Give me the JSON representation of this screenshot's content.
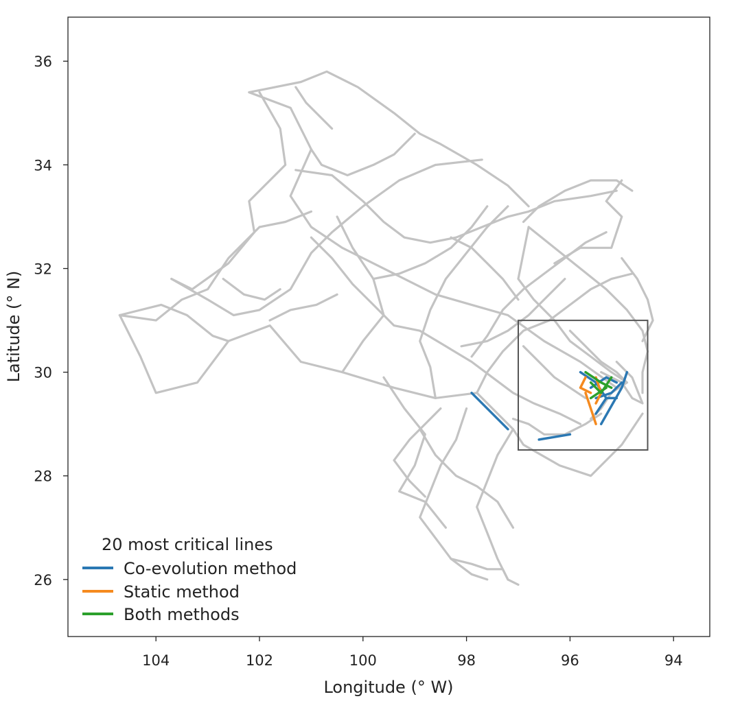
{
  "chart_data": {
    "type": "line",
    "xlabel": "Longitude (° W)",
    "ylabel": "Latitude (° N)",
    "xlim": [
      105.7,
      93.3
    ],
    "ylim": [
      24.9,
      36.85
    ],
    "x_ticks": [
      {
        "value": 104,
        "label": "104"
      },
      {
        "value": 102,
        "label": "102"
      },
      {
        "value": 100,
        "label": "100"
      },
      {
        "value": 98,
        "label": "98"
      },
      {
        "value": 96,
        "label": "96"
      },
      {
        "value": 94,
        "label": "94"
      }
    ],
    "y_ticks": [
      {
        "value": 36,
        "label": "36"
      },
      {
        "value": 34,
        "label": "34"
      },
      {
        "value": 32,
        "label": "32"
      },
      {
        "value": 30,
        "label": "30"
      },
      {
        "value": 28,
        "label": "28"
      },
      {
        "value": 26,
        "label": "26"
      }
    ],
    "inset_box": {
      "lon_min": 94.5,
      "lon_max": 97.0,
      "lat_min": 28.5,
      "lat_max": 31.0
    },
    "legend": {
      "title": "20 most critical lines",
      "placement": "bottom-left",
      "entries": [
        {
          "label": "Co-evolution method",
          "color": "#2b78b3"
        },
        {
          "label": "Static method",
          "color": "#f58a1f"
        },
        {
          "label": "Both methods",
          "color": "#2ca02c"
        }
      ]
    },
    "colors": {
      "network": "#c3c3c3",
      "co_evolution": "#2b78b3",
      "static": "#f58a1f",
      "both": "#2ca02c",
      "frame": "#222222",
      "inset_box": "#555555"
    },
    "background_network": [
      [
        [
          104.7,
          31.1
        ],
        [
          104.3,
          30.3
        ],
        [
          104.0,
          29.6
        ],
        [
          103.2,
          29.8
        ],
        [
          102.6,
          30.6
        ],
        [
          101.8,
          30.9
        ],
        [
          101.2,
          30.2
        ],
        [
          100.4,
          30.0
        ],
        [
          99.4,
          29.7
        ],
        [
          98.6,
          29.5
        ],
        [
          97.8,
          29.6
        ],
        [
          97.1,
          28.9
        ],
        [
          96.9,
          28.6
        ],
        [
          96.2,
          28.2
        ],
        [
          95.6,
          28.0
        ],
        [
          95.0,
          28.6
        ],
        [
          94.6,
          29.2
        ]
      ],
      [
        [
          104.7,
          31.1
        ],
        [
          104.0,
          31.0
        ],
        [
          103.5,
          31.4
        ],
        [
          103.0,
          31.6
        ],
        [
          102.6,
          32.2
        ],
        [
          102.0,
          32.8
        ],
        [
          101.5,
          32.9
        ],
        [
          101.0,
          33.1
        ]
      ],
      [
        [
          103.7,
          31.8
        ],
        [
          103.0,
          31.4
        ],
        [
          102.5,
          31.1
        ],
        [
          102.0,
          31.2
        ],
        [
          101.4,
          31.6
        ],
        [
          101.0,
          32.3
        ],
        [
          100.6,
          32.7
        ],
        [
          100.0,
          33.2
        ],
        [
          99.3,
          33.7
        ],
        [
          98.6,
          34.0
        ],
        [
          97.7,
          34.1
        ]
      ],
      [
        [
          102.2,
          35.4
        ],
        [
          101.4,
          35.1
        ],
        [
          101.0,
          34.3
        ],
        [
          101.4,
          33.4
        ],
        [
          101.0,
          32.8
        ],
        [
          100.4,
          32.4
        ],
        [
          99.8,
          32.1
        ],
        [
          99.2,
          31.8
        ],
        [
          98.6,
          31.5
        ],
        [
          97.9,
          31.3
        ],
        [
          97.2,
          31.1
        ],
        [
          96.5,
          30.6
        ],
        [
          95.8,
          30.2
        ],
        [
          95.1,
          29.7
        ]
      ],
      [
        [
          102.2,
          35.4
        ],
        [
          101.2,
          35.6
        ],
        [
          100.7,
          35.8
        ],
        [
          100.1,
          35.5
        ],
        [
          99.4,
          35.0
        ],
        [
          98.9,
          34.6
        ],
        [
          98.5,
          34.4
        ],
        [
          97.8,
          34.0
        ],
        [
          97.2,
          33.6
        ],
        [
          96.8,
          33.2
        ]
      ],
      [
        [
          102.0,
          35.4
        ],
        [
          101.6,
          34.7
        ],
        [
          101.5,
          34.0
        ],
        [
          102.2,
          33.3
        ],
        [
          102.1,
          32.7
        ],
        [
          102.6,
          32.1
        ],
        [
          103.3,
          31.6
        ],
        [
          103.7,
          31.8
        ]
      ],
      [
        [
          104.7,
          31.1
        ],
        [
          103.9,
          31.3
        ],
        [
          103.4,
          31.1
        ],
        [
          102.9,
          30.7
        ],
        [
          102.6,
          30.6
        ]
      ],
      [
        [
          101.3,
          33.9
        ],
        [
          100.6,
          33.8
        ],
        [
          100.0,
          33.3
        ],
        [
          99.6,
          32.9
        ],
        [
          99.2,
          32.6
        ],
        [
          98.7,
          32.5
        ],
        [
          98.2,
          32.6
        ],
        [
          97.7,
          32.8
        ],
        [
          97.2,
          33.0
        ],
        [
          96.8,
          33.1
        ],
        [
          96.3,
          33.3
        ],
        [
          95.6,
          33.4
        ],
        [
          95.1,
          33.5
        ]
      ],
      [
        [
          101.0,
          32.6
        ],
        [
          100.6,
          32.2
        ],
        [
          100.2,
          31.7
        ],
        [
          99.8,
          31.3
        ],
        [
          99.4,
          30.9
        ],
        [
          98.9,
          30.8
        ],
        [
          98.4,
          30.5
        ],
        [
          97.9,
          30.2
        ],
        [
          97.5,
          29.9
        ],
        [
          97.1,
          29.6
        ],
        [
          96.7,
          29.4
        ],
        [
          96.2,
          29.2
        ],
        [
          95.8,
          29.0
        ]
      ],
      [
        [
          100.4,
          30.0
        ],
        [
          100.0,
          30.6
        ],
        [
          99.6,
          31.1
        ],
        [
          99.8,
          31.8
        ],
        [
          100.2,
          32.4
        ],
        [
          100.5,
          33.0
        ]
      ],
      [
        [
          98.6,
          29.5
        ],
        [
          98.7,
          30.1
        ],
        [
          98.9,
          30.6
        ],
        [
          98.7,
          31.2
        ],
        [
          98.4,
          31.8
        ],
        [
          98.0,
          32.3
        ],
        [
          97.6,
          32.8
        ],
        [
          97.2,
          33.2
        ]
      ],
      [
        [
          97.1,
          28.9
        ],
        [
          97.4,
          28.4
        ],
        [
          97.6,
          27.9
        ],
        [
          97.8,
          27.4
        ],
        [
          97.6,
          26.9
        ],
        [
          97.4,
          26.4
        ],
        [
          97.2,
          26.0
        ],
        [
          97.0,
          25.9
        ]
      ],
      [
        [
          98.0,
          29.3
        ],
        [
          98.2,
          28.7
        ],
        [
          98.5,
          28.2
        ],
        [
          98.7,
          27.7
        ],
        [
          98.9,
          27.2
        ],
        [
          98.6,
          26.8
        ],
        [
          98.3,
          26.4
        ],
        [
          97.9,
          26.1
        ],
        [
          97.6,
          26.0
        ]
      ],
      [
        [
          98.9,
          28.9
        ],
        [
          98.6,
          28.4
        ],
        [
          98.2,
          28.0
        ],
        [
          97.8,
          27.8
        ],
        [
          97.4,
          27.5
        ],
        [
          97.1,
          27.0
        ]
      ],
      [
        [
          97.8,
          29.6
        ],
        [
          97.6,
          30.0
        ],
        [
          97.3,
          30.4
        ],
        [
          96.9,
          30.8
        ],
        [
          96.4,
          31.0
        ],
        [
          96.0,
          31.3
        ],
        [
          95.6,
          31.6
        ],
        [
          95.2,
          31.8
        ],
        [
          94.8,
          31.9
        ]
      ],
      [
        [
          97.9,
          30.3
        ],
        [
          97.6,
          30.7
        ],
        [
          97.3,
          31.2
        ],
        [
          96.9,
          31.6
        ],
        [
          96.5,
          31.9
        ],
        [
          96.1,
          32.2
        ],
        [
          95.7,
          32.5
        ],
        [
          95.3,
          32.7
        ]
      ],
      [
        [
          96.9,
          32.9
        ],
        [
          96.6,
          33.2
        ],
        [
          96.1,
          33.5
        ],
        [
          95.6,
          33.7
        ],
        [
          95.1,
          33.7
        ],
        [
          94.8,
          33.5
        ]
      ],
      [
        [
          96.8,
          32.8
        ],
        [
          96.3,
          32.4
        ],
        [
          95.8,
          32.0
        ],
        [
          95.3,
          31.6
        ],
        [
          94.9,
          31.2
        ],
        [
          94.6,
          30.8
        ],
        [
          94.5,
          30.4
        ],
        [
          94.6,
          30.0
        ],
        [
          94.6,
          29.6
        ]
      ],
      [
        [
          96.8,
          32.8
        ],
        [
          96.9,
          32.3
        ],
        [
          97.0,
          31.8
        ],
        [
          96.7,
          31.4
        ],
        [
          96.3,
          31.0
        ],
        [
          96.0,
          30.6
        ],
        [
          95.6,
          30.3
        ],
        [
          95.2,
          30.0
        ],
        [
          94.9,
          29.8
        ]
      ],
      [
        [
          95.0,
          32.2
        ],
        [
          94.7,
          31.8
        ],
        [
          94.5,
          31.4
        ],
        [
          94.4,
          31.0
        ],
        [
          94.6,
          30.6
        ]
      ],
      [
        [
          95.4,
          30.0
        ],
        [
          95.0,
          29.8
        ],
        [
          94.8,
          29.5
        ],
        [
          94.6,
          29.4
        ],
        [
          94.8,
          29.9
        ],
        [
          95.1,
          30.2
        ]
      ],
      [
        [
          99.6,
          29.9
        ],
        [
          99.2,
          29.3
        ],
        [
          98.8,
          28.8
        ],
        [
          99.0,
          28.2
        ],
        [
          99.3,
          27.7
        ],
        [
          98.8,
          27.5
        ],
        [
          98.4,
          27.0
        ]
      ],
      [
        [
          98.3,
          26.4
        ],
        [
          97.9,
          26.3
        ],
        [
          97.6,
          26.2
        ],
        [
          97.3,
          26.2
        ],
        [
          97.2,
          26.0
        ]
      ],
      [
        [
          99.0,
          34.6
        ],
        [
          99.4,
          34.2
        ],
        [
          99.8,
          34.0
        ],
        [
          100.3,
          33.8
        ],
        [
          100.8,
          34.0
        ],
        [
          101.0,
          34.3
        ]
      ],
      [
        [
          97.6,
          33.2
        ],
        [
          97.9,
          32.8
        ],
        [
          98.3,
          32.4
        ],
        [
          98.8,
          32.1
        ],
        [
          99.3,
          31.9
        ],
        [
          99.8,
          31.8
        ]
      ],
      [
        [
          96.3,
          32.1
        ],
        [
          95.8,
          32.4
        ],
        [
          95.2,
          32.4
        ],
        [
          95.0,
          33.0
        ],
        [
          95.3,
          33.3
        ],
        [
          95.0,
          33.7
        ]
      ],
      [
        [
          96.1,
          31.8
        ],
        [
          96.5,
          31.4
        ],
        [
          96.8,
          31.1
        ],
        [
          97.2,
          30.8
        ],
        [
          97.6,
          30.6
        ],
        [
          98.1,
          30.5
        ]
      ],
      [
        [
          96.0,
          30.8
        ],
        [
          95.7,
          30.5
        ],
        [
          95.4,
          30.2
        ],
        [
          95.1,
          30.0
        ],
        [
          94.9,
          29.8
        ],
        [
          95.2,
          29.6
        ],
        [
          95.4,
          29.3
        ],
        [
          95.6,
          29.1
        ]
      ],
      [
        [
          96.9,
          30.5
        ],
        [
          96.6,
          30.2
        ],
        [
          96.3,
          29.9
        ],
        [
          96.0,
          29.7
        ],
        [
          95.7,
          29.5
        ]
      ],
      [
        [
          98.5,
          29.3
        ],
        [
          98.8,
          29.0
        ],
        [
          99.1,
          28.7
        ],
        [
          99.4,
          28.3
        ],
        [
          99.1,
          27.9
        ],
        [
          98.8,
          27.6
        ]
      ],
      [
        [
          97.1,
          29.1
        ],
        [
          96.8,
          29.0
        ],
        [
          96.5,
          28.8
        ],
        [
          96.1,
          28.8
        ],
        [
          95.7,
          29.0
        ],
        [
          95.4,
          29.2
        ]
      ],
      [
        [
          102.7,
          31.8
        ],
        [
          102.3,
          31.5
        ],
        [
          101.9,
          31.4
        ],
        [
          101.6,
          31.6
        ]
      ],
      [
        [
          100.5,
          31.5
        ],
        [
          100.9,
          31.3
        ],
        [
          101.4,
          31.2
        ],
        [
          101.8,
          31.0
        ]
      ],
      [
        [
          101.3,
          35.5
        ],
        [
          101.1,
          35.2
        ],
        [
          100.8,
          34.9
        ],
        [
          100.6,
          34.7
        ]
      ],
      [
        [
          97.0,
          31.4
        ],
        [
          97.3,
          31.8
        ],
        [
          97.6,
          32.1
        ],
        [
          97.9,
          32.4
        ],
        [
          98.3,
          32.6
        ]
      ]
    ],
    "series": [
      {
        "name": "Co-evolution method",
        "segments": [
          [
            [
              97.9,
              29.6
            ],
            [
              97.2,
              28.9
            ]
          ],
          [
            [
              96.6,
              28.7
            ],
            [
              96.0,
              28.8
            ]
          ],
          [
            [
              95.4,
              29.0
            ],
            [
              95.0,
              29.7
            ],
            [
              94.9,
              30.0
            ]
          ],
          [
            [
              95.5,
              29.5
            ],
            [
              95.2,
              29.6
            ],
            [
              95.0,
              29.8
            ]
          ],
          [
            [
              95.6,
              29.7
            ],
            [
              95.3,
              29.9
            ],
            [
              95.1,
              29.8
            ]
          ],
          [
            [
              95.8,
              30.0
            ],
            [
              95.5,
              29.8
            ],
            [
              95.3,
              29.5
            ]
          ],
          [
            [
              95.5,
              29.2
            ],
            [
              95.3,
              29.5
            ],
            [
              95.1,
              29.5
            ]
          ]
        ]
      },
      {
        "name": "Static method",
        "segments": [
          [
            [
              95.7,
              29.9
            ],
            [
              95.8,
              29.7
            ],
            [
              95.6,
              29.6
            ]
          ],
          [
            [
              95.5,
              29.9
            ],
            [
              95.4,
              29.6
            ],
            [
              95.5,
              29.4
            ]
          ],
          [
            [
              95.7,
              29.6
            ],
            [
              95.6,
              29.3
            ],
            [
              95.5,
              29.0
            ]
          ]
        ]
      },
      {
        "name": "Both methods",
        "segments": [
          [
            [
              95.7,
              30.0
            ],
            [
              95.4,
              29.8
            ],
            [
              95.2,
              29.7
            ]
          ],
          [
            [
              95.6,
              29.5
            ],
            [
              95.3,
              29.7
            ]
          ],
          [
            [
              95.6,
              29.8
            ],
            [
              95.4,
              29.6
            ],
            [
              95.2,
              29.9
            ]
          ]
        ]
      }
    ]
  }
}
